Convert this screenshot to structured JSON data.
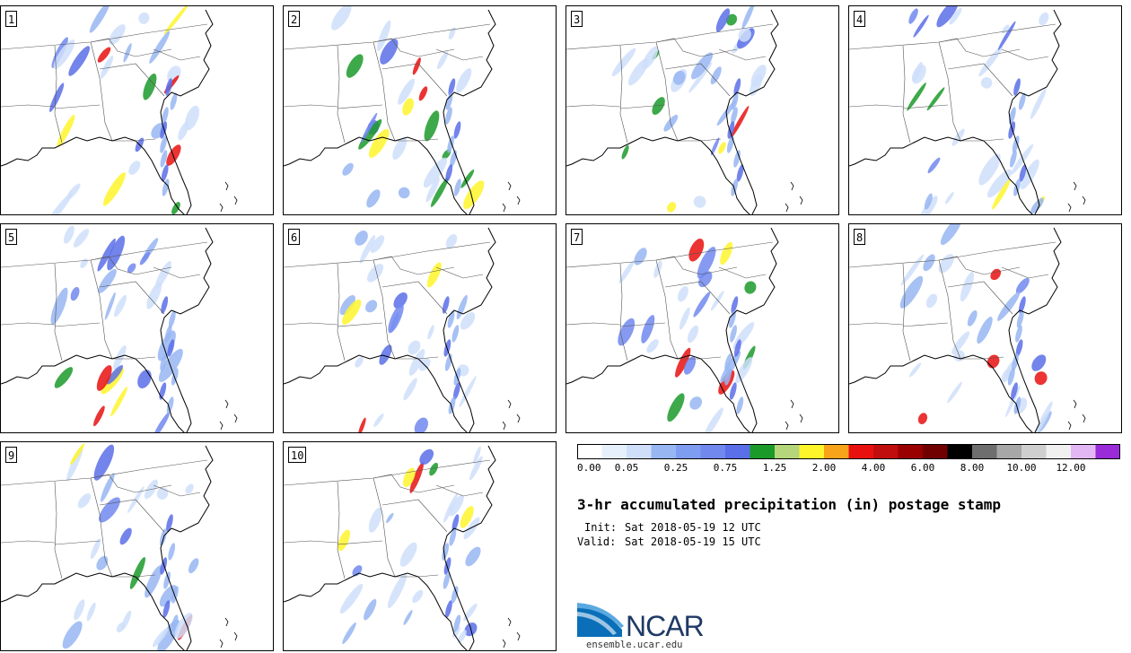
{
  "title": "3-hr accumulated precipitation (in) postage stamp",
  "init_label": "Init:",
  "init_value": "Sat 2018-05-19 12 UTC",
  "valid_label": "Valid:",
  "valid_value": "Sat 2018-05-19 15 UTC",
  "logo": {
    "text": "NCAR",
    "url": "ensemble.ucar.edu"
  },
  "members": [
    "1",
    "2",
    "3",
    "4",
    "5",
    "6",
    "7",
    "8",
    "9",
    "10"
  ],
  "colorbar": {
    "colors": [
      "#ffffff",
      "#e6f0fc",
      "#cfdffa",
      "#98b6f2",
      "#7e9cf0",
      "#7188ee",
      "#5a6fe8",
      "#1b9a2a",
      "#b5d67a",
      "#fff52b",
      "#f7a41b",
      "#e8110f",
      "#c00d0d",
      "#990000",
      "#700000",
      "#000000",
      "#6e6e6e",
      "#a7a7a7",
      "#cfcfcf",
      "#f0f0f0",
      "#e3b7f3",
      "#9a2bd8"
    ],
    "tick_labels": [
      "0.00",
      "0.05",
      "0.25",
      "0.75",
      "1.25",
      "2.00",
      "4.00",
      "6.00",
      "8.00",
      "10.00",
      "12.00"
    ]
  }
}
